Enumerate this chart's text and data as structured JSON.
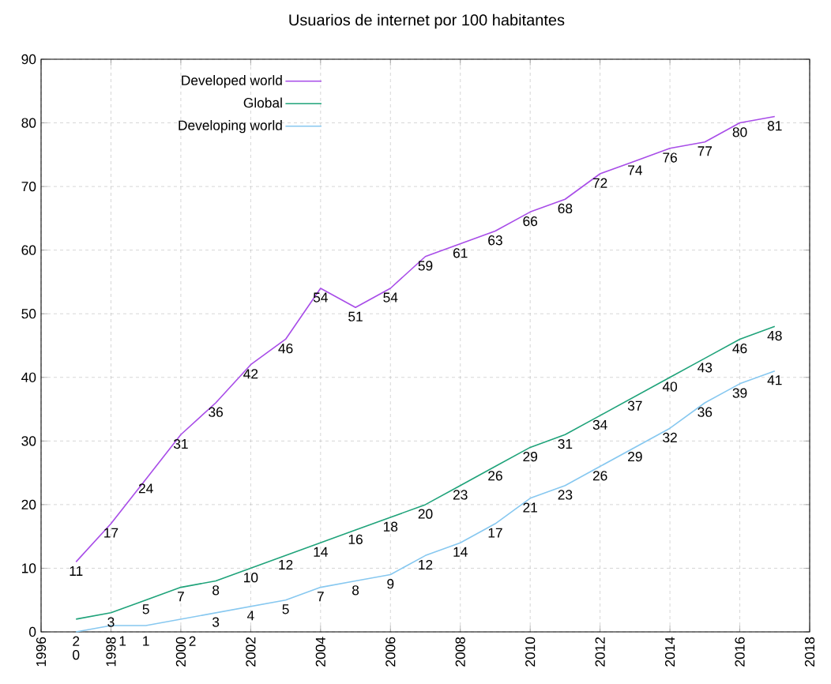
{
  "chart_data": {
    "type": "line",
    "title": "Usuarios de internet por 100 habitantes",
    "x": [
      1997,
      1998,
      1999,
      2000,
      2001,
      2002,
      2003,
      2004,
      2005,
      2006,
      2007,
      2008,
      2009,
      2010,
      2011,
      2012,
      2013,
      2014,
      2015,
      2016,
      2017
    ],
    "series": [
      {
        "name": "Developed world",
        "color": "#a84de8",
        "values": [
          11,
          17,
          24,
          31,
          36,
          42,
          46,
          54,
          51,
          54,
          59,
          61,
          63,
          66,
          68,
          72,
          74,
          76,
          77,
          80,
          81
        ]
      },
      {
        "name": "Global",
        "color": "#1fa37a",
        "values": [
          2,
          3,
          5,
          7,
          8,
          10,
          12,
          14,
          16,
          18,
          20,
          23,
          26,
          29,
          31,
          34,
          37,
          40,
          43,
          46,
          48
        ]
      },
      {
        "name": "Developing world",
        "color": "#87c8f0",
        "values": [
          0,
          1,
          1,
          2,
          3,
          4,
          5,
          7,
          8,
          9,
          12,
          14,
          17,
          21,
          23,
          26,
          29,
          32,
          36,
          39,
          41
        ]
      }
    ],
    "xlim": [
      1996,
      2018
    ],
    "xticks": [
      1996,
      1998,
      2000,
      2002,
      2004,
      2006,
      2008,
      2010,
      2012,
      2014,
      2016,
      2018
    ],
    "ylim": [
      0,
      90
    ],
    "yticks": [
      0,
      10,
      20,
      30,
      40,
      50,
      60,
      70,
      80,
      90
    ],
    "grid": true,
    "legend": "top left",
    "data_labels": true,
    "marker": "none",
    "line_style": "solid"
  }
}
